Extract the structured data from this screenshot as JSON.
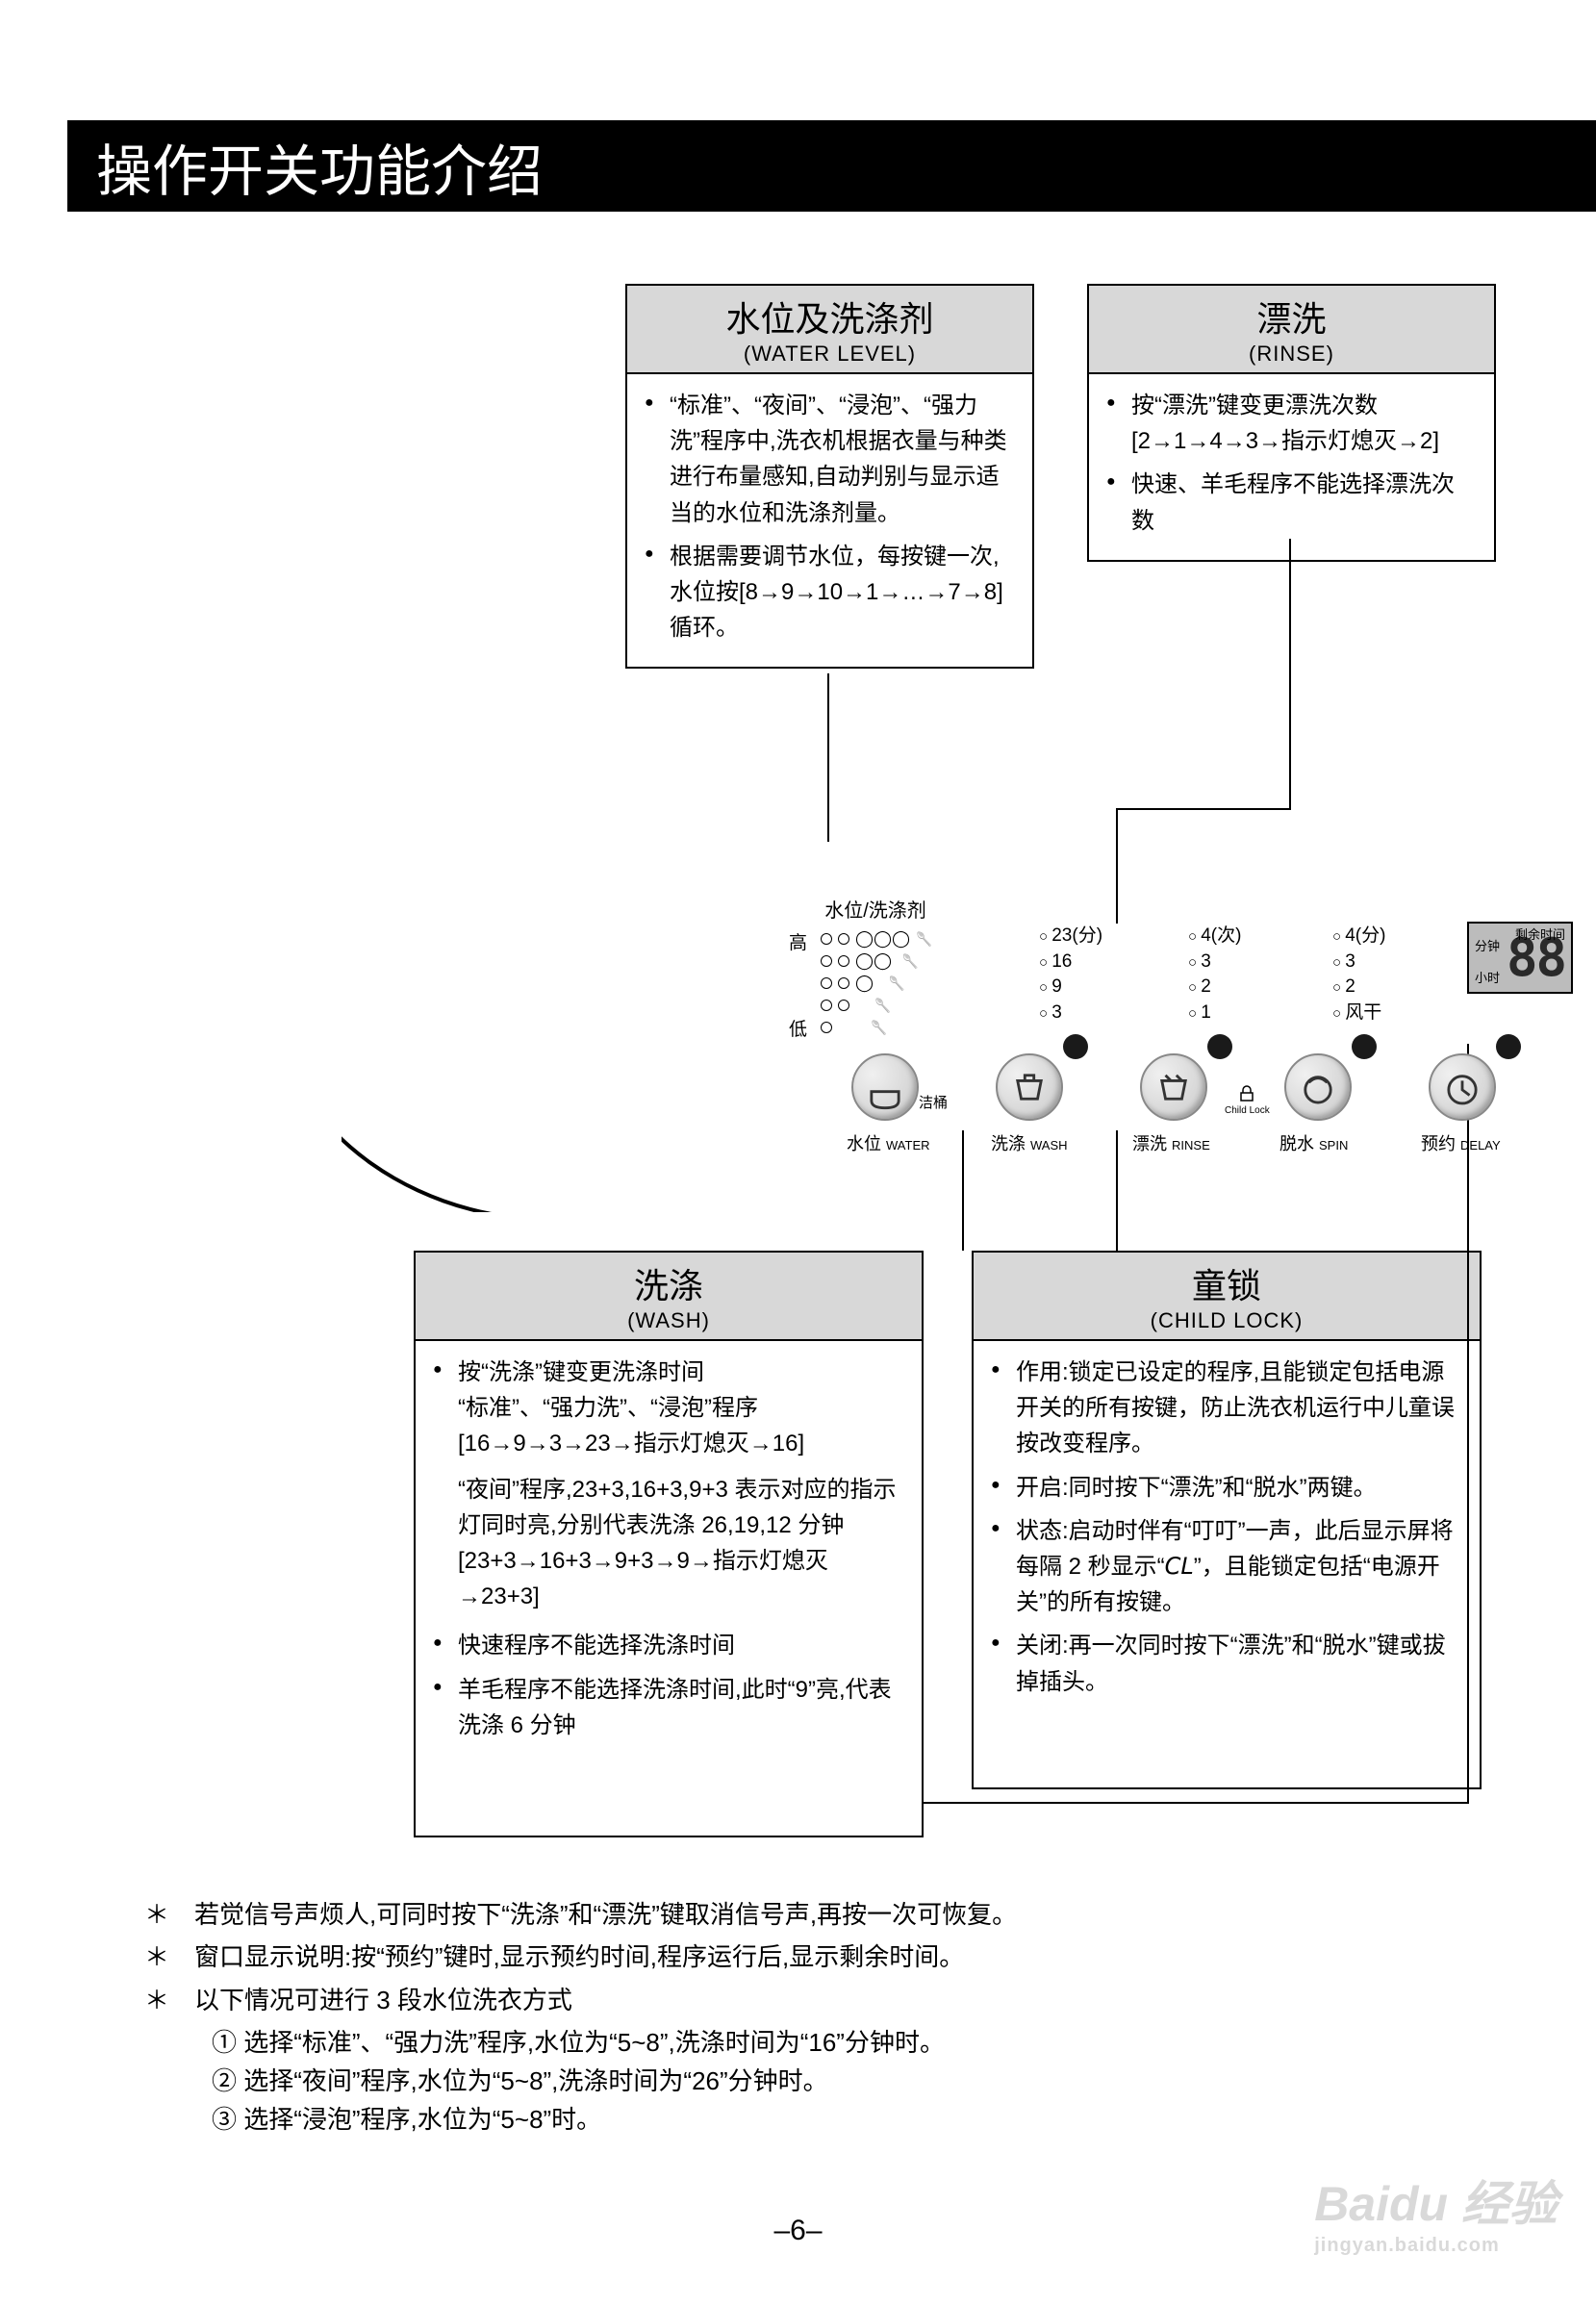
{
  "page_title": "操作开关功能介绍",
  "page_number": "–6–",
  "watermark": {
    "brand": "Baidu 经验",
    "url": "jingyan.baidu.com"
  },
  "callouts": {
    "water_level": {
      "title_cn": "水位及洗涤剂",
      "title_en": "(WATER LEVEL)",
      "items": [
        "“标准”、“夜间”、“浸泡”、“强力洗”程序中,洗衣机根据衣量与种类进行布量感知,自动判别与显示适当的水位和洗涤剂量。",
        "根据需要调节水位，每按键一次,水位按[8→9→10→1→…→7→8]循环。"
      ]
    },
    "rinse": {
      "title_cn": "漂洗",
      "title_en": "(RINSE)",
      "items": [
        "按“漂洗”键变更漂洗次数[2→1→4→3→指示灯熄灭→2]",
        "快速、羊毛程序不能选择漂洗次数"
      ]
    },
    "wash": {
      "title_cn": "洗涤",
      "title_en": "(WASH)",
      "items": [
        "按“洗涤”键变更洗涤时间\n“标准”、“强力洗”、“浸泡”程序\n[16→9→3→23→指示灯熄灭→16]",
        "_plain_“夜间”程序,23+3,16+3,9+3 表示对应的指示灯同时亮,分别代表洗涤 26,19,12 分钟 [23+3→16+3→9+3→9→指示灯熄灭→23+3]",
        "快速程序不能选择洗涤时间",
        "羊毛程序不能选择洗涤时间,此时“9”亮,代表洗涤 6 分钟"
      ]
    },
    "child_lock": {
      "title_cn": "童锁",
      "title_en": "(CHILD LOCK)",
      "items": [
        "作用:锁定已设定的程序,且能锁定包括电源开关的所有按键，防止洗衣机运行中儿童误按改变程序。",
        "开启:同时按下“漂洗”和“脱水”两键。",
        "状态:启动时伴有“叮叮”一声，此后显示屏将每隔 2 秒显示“𝘊𝘓”，且能锁定包括“电源开关”的所有按键。",
        "关闭:再一次同时按下“漂洗”和“脱水”键或拔掉插头。"
      ]
    }
  },
  "panel": {
    "level_header": "水位/洗涤剂",
    "level_high": "高",
    "level_low": "低",
    "wash_values": [
      "23(分)",
      "16",
      "9",
      "3"
    ],
    "rinse_values": [
      "4(次)",
      "3",
      "2",
      "1"
    ],
    "spin_values": [
      "4(分)",
      "3",
      "2",
      "风干"
    ],
    "display_digits": "88",
    "display_tag_top": "剩余时间",
    "display_tag_min": "分钟",
    "display_tag_hr": "小时",
    "buttons": {
      "water": {
        "cn": "水位",
        "en": "WATER",
        "extra": "洁桶"
      },
      "wash": {
        "cn": "洗涤",
        "en": "WASH"
      },
      "rinse": {
        "cn": "漂洗",
        "en": "RINSE"
      },
      "spin": {
        "cn": "脱水",
        "en": "SPIN"
      },
      "delay": {
        "cn": "预约",
        "en": "DELAY"
      }
    },
    "child_lock_small": "Child Lock"
  },
  "footer": {
    "n1": "若觉信号声烦人,可同时按下“洗涤”和“漂洗”键取消信号声,再按一次可恢复。",
    "n2": "窗口显示说明:按“预约”键时,显示预约时间,程序运行后,显示剩余时间。",
    "n3": "以下情况可进行 3 段水位洗衣方式",
    "s1": "① 选择“标准”、“强力洗”程序,水位为“5~8”,洗涤时间为“16”分钟时。",
    "s2": "② 选择“夜间”程序,水位为“5~8”,洗涤时间为“26”分钟时。",
    "s3": "③ 选择“浸泡”程序,水位为“5~8”时。"
  },
  "colors": {
    "header_bg": "#d8d8d8",
    "border": "#000000",
    "title_bar_bg": "#000000",
    "title_bar_fg": "#ffffff"
  }
}
